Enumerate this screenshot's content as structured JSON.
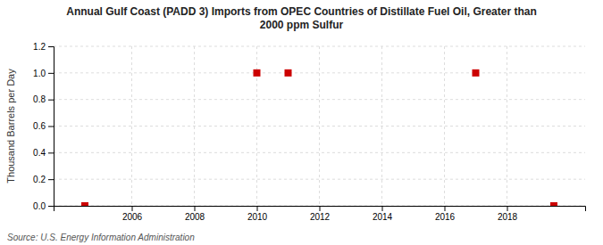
{
  "chart_data": {
    "type": "scatter",
    "title": "Annual Gulf Coast (PADD 3) Imports from OPEC Countries of Distillate Fuel Oil, Greater than\n2000 ppm Sulfur",
    "ylabel": "Thousand Barrels per Day",
    "annotations": [
      "Source: U.S. Energy Information Administration"
    ],
    "x": [
      2004.5,
      2010,
      2011,
      2017,
      2019.5
    ],
    "values": [
      0.0,
      1.0,
      1.0,
      1.0,
      0.0
    ],
    "color": "#cc0000",
    "marker": "square",
    "xlim": [
      2003.5,
      2020.5
    ],
    "ylim": [
      0.0,
      1.2
    ],
    "xticks": [
      2006,
      2008,
      2010,
      2012,
      2014,
      2016,
      2018
    ],
    "yticks": [
      {
        "value": 0.0,
        "label": "0.0"
      },
      0.2,
      0.4,
      0.6,
      0.8,
      {
        "value": 1.0,
        "label": "1.0"
      },
      1.2
    ],
    "grid": true
  }
}
